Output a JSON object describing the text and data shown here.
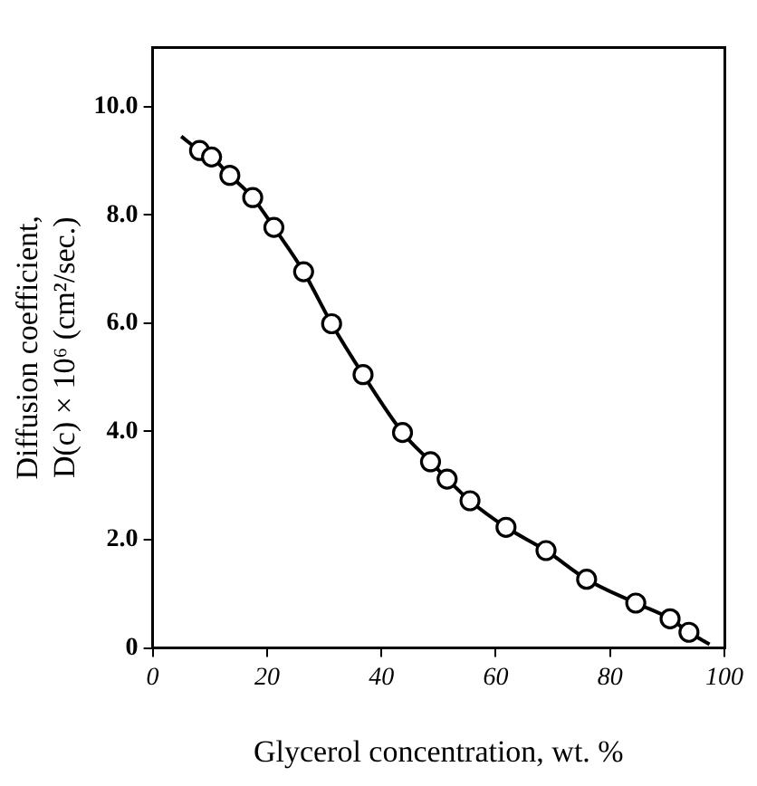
{
  "chart_data": {
    "type": "scatter",
    "xlabel": "Glycerol concentration, wt. %",
    "ylabel": "Diffusion coefficient, D(c) × 10⁶ (cm²/sec.)",
    "xlim": [
      0,
      100
    ],
    "ylim": [
      0,
      11.1
    ],
    "xticks": [
      0,
      20,
      40,
      60,
      80,
      100
    ],
    "yticks": [
      {
        "value": 0,
        "label": "0"
      },
      {
        "value": 2,
        "label": "2.0"
      },
      {
        "value": 4,
        "label": "4.0"
      },
      {
        "value": 6,
        "label": "6.0"
      },
      {
        "value": 8,
        "label": "8.0"
      },
      {
        "value": 10,
        "label": "10.0"
      }
    ],
    "grid": false,
    "legend": false,
    "series": [
      {
        "type": "line",
        "color": "#000000",
        "marker": "none",
        "x": [
          5,
          8.2,
          10.3,
          13.5,
          17.5,
          21.2,
          26.4,
          31.3,
          36.8,
          43.7,
          48.6,
          51.5,
          55.5,
          61.8,
          68.8,
          75.9,
          84.5,
          90.5,
          93.8,
          97.4
        ],
        "values": [
          9.45,
          9.19,
          9.07,
          8.73,
          8.32,
          7.77,
          6.95,
          5.99,
          5.05,
          3.98,
          3.44,
          3.12,
          2.72,
          2.23,
          1.8,
          1.27,
          0.83,
          0.54,
          0.29,
          0.07
        ]
      },
      {
        "color": "#000000",
        "marker": "circle",
        "x": [
          8.2,
          10.3,
          13.5,
          17.5,
          21.2,
          26.4,
          31.3,
          36.8,
          43.7,
          48.6,
          51.5,
          55.5,
          61.8,
          68.8,
          75.9,
          84.5,
          90.5,
          93.8
        ],
        "values": [
          9.19,
          9.07,
          8.73,
          8.32,
          7.77,
          6.95,
          5.99,
          5.05,
          3.98,
          3.44,
          3.12,
          2.72,
          2.23,
          1.8,
          1.27,
          0.83,
          0.54,
          0.29
        ]
      }
    ]
  }
}
